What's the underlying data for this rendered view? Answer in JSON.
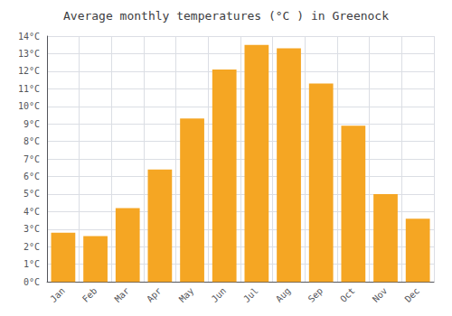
{
  "chart_data": {
    "type": "bar",
    "title": "Average monthly temperatures (°C ) in Greenock",
    "categories": [
      "Jan",
      "Feb",
      "Mar",
      "Apr",
      "May",
      "Jun",
      "Jul",
      "Aug",
      "Sep",
      "Oct",
      "Nov",
      "Dec"
    ],
    "values": [
      2.8,
      2.6,
      4.2,
      6.4,
      9.3,
      12.1,
      13.5,
      13.3,
      11.3,
      8.9,
      5.0,
      3.6
    ],
    "color": "#F5A623",
    "ylim": [
      0,
      14
    ],
    "yticks": [
      {
        "value": 0,
        "label": "0°C"
      },
      {
        "value": 1,
        "label": "1°C"
      },
      {
        "value": 2,
        "label": "2°C"
      },
      {
        "value": 3,
        "label": "3°C"
      },
      {
        "value": 4,
        "label": "4°C"
      },
      {
        "value": 5,
        "label": "5°C"
      },
      {
        "value": 6,
        "label": "6°C"
      },
      {
        "value": 7,
        "label": "7°C"
      },
      {
        "value": 8,
        "label": "8°C"
      },
      {
        "value": 9,
        "label": "9°C"
      },
      {
        "value": 10,
        "label": "10°C"
      },
      {
        "value": 11,
        "label": "11°C"
      },
      {
        "value": 12,
        "label": "12°C"
      },
      {
        "value": 13,
        "label": "13°C"
      },
      {
        "value": 14,
        "label": "14°C"
      }
    ],
    "grid": true
  }
}
